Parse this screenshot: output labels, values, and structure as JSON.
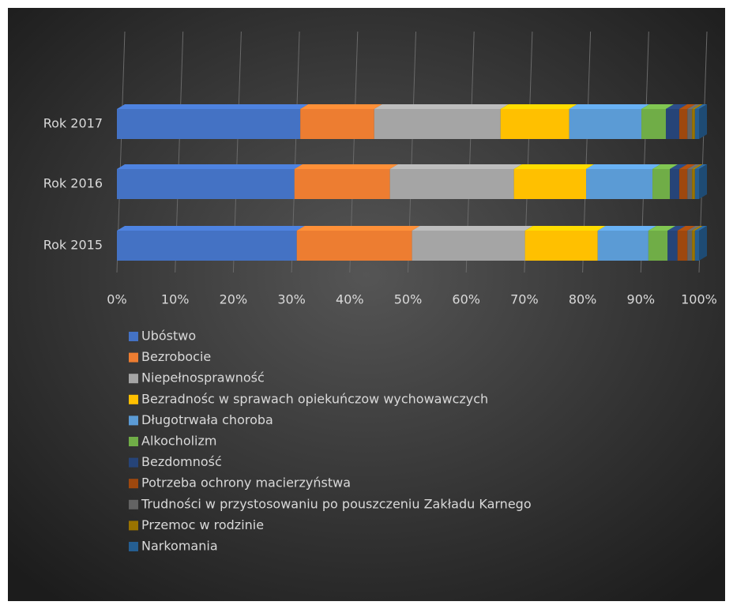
{
  "chart_data": {
    "type": "stacked_bar_horizontal",
    "categories": [
      "Rok 2017",
      "Rok 2016",
      "Rok 2015"
    ],
    "series": [
      {
        "name": "Ubóstwo",
        "color": "#4472c4",
        "values": [
          31.5,
          30.5,
          30.9
        ]
      },
      {
        "name": "Bezrobocie",
        "color": "#ed7d31",
        "values": [
          12.7,
          16.4,
          19.8
        ]
      },
      {
        "name": "Niepełnosprawność",
        "color": "#a5a5a5",
        "values": [
          21.7,
          21.3,
          19.4
        ]
      },
      {
        "name": "Bezradnośc w sprawach opiekuńczow wychowawczych",
        "color": "#ffc000",
        "values": [
          11.8,
          12.4,
          12.5
        ]
      },
      {
        "name": "Długotrwała choroba",
        "color": "#5b9bd5",
        "values": [
          12.4,
          11.4,
          8.7
        ]
      },
      {
        "name": "Alkocholizm",
        "color": "#70ad47",
        "values": [
          4.2,
          3.0,
          3.3
        ]
      },
      {
        "name": "Bezdomność",
        "color": "#264478",
        "values": [
          2.3,
          1.6,
          1.7
        ]
      },
      {
        "name": "Potrzeba ochrony macierzyństwa",
        "color": "#9e480e",
        "values": [
          1.4,
          1.4,
          1.7
        ]
      },
      {
        "name": "Trudności w przystosowaniu po pouszczeniu Zakładu Karnego",
        "color": "#636363",
        "values": [
          0.8,
          0.8,
          0.8
        ]
      },
      {
        "name": "Przemoc w rodzinie",
        "color": "#997300",
        "values": [
          0.5,
          0.5,
          0.5
        ]
      },
      {
        "name": "Narkomania",
        "color": "#255e91",
        "values": [
          0.7,
          0.7,
          0.7
        ]
      }
    ],
    "xlim": [
      0,
      100
    ],
    "xticks": [
      {
        "value": 0,
        "label": "0%"
      },
      {
        "value": 10,
        "label": "10%"
      },
      {
        "value": 20,
        "label": "20%"
      },
      {
        "value": 30,
        "label": "30%"
      },
      {
        "value": 40,
        "label": "40%"
      },
      {
        "value": 50,
        "label": "50%"
      },
      {
        "value": 60,
        "label": "60%"
      },
      {
        "value": 70,
        "label": "70%"
      },
      {
        "value": 80,
        "label": "80%"
      },
      {
        "value": 90,
        "label": "90%"
      },
      {
        "value": 100,
        "label": "100%"
      }
    ],
    "grid": true,
    "legend": "bottom"
  }
}
